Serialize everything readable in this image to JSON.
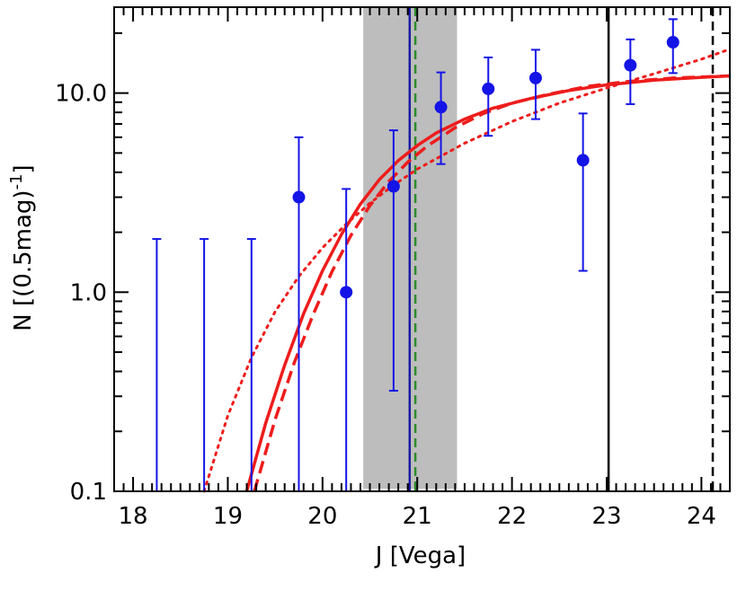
{
  "chart_data": {
    "type": "scatter",
    "xlabel": "J [Vega]",
    "ylabel": "N [(0.5mag)",
    "ylabel_sup": "-1",
    "ylabel_close": "]",
    "xlim": [
      17.8,
      24.3
    ],
    "ylim": [
      0.1,
      27
    ],
    "yscale": "log",
    "x_ticks": [
      18,
      19,
      20,
      21,
      22,
      23,
      24
    ],
    "x_tick_labels": [
      "18",
      "19",
      "20",
      "21",
      "22",
      "23",
      "24"
    ],
    "y_ticks": [
      0.1,
      1.0,
      10.0
    ],
    "y_tick_labels": [
      "0.1",
      "1.0",
      "10.0"
    ],
    "grid": false,
    "points": [
      {
        "x": 19.75,
        "y": 3.0,
        "ylo": 0.1,
        "yhi": 6.0
      },
      {
        "x": 20.25,
        "y": 1.0,
        "ylo": 0.1,
        "yhi": 3.3
      },
      {
        "x": 20.75,
        "y": 3.4,
        "ylo": 0.32,
        "yhi": 6.5
      },
      {
        "x": 21.25,
        "y": 8.5,
        "ylo": 4.4,
        "yhi": 12.7
      },
      {
        "x": 21.75,
        "y": 10.5,
        "ylo": 6.1,
        "yhi": 15.1
      },
      {
        "x": 22.25,
        "y": 11.9,
        "ylo": 7.4,
        "yhi": 16.5
      },
      {
        "x": 22.75,
        "y": 4.6,
        "ylo": 1.28,
        "yhi": 7.9
      },
      {
        "x": 23.25,
        "y": 13.8,
        "ylo": 8.8,
        "yhi": 18.6
      },
      {
        "x": 23.7,
        "y": 18.0,
        "ylo": 12.6,
        "yhi": 23.5
      }
    ],
    "upper_limits": [
      {
        "x": 18.25,
        "yhi": 1.85
      },
      {
        "x": 18.75,
        "yhi": 1.85
      },
      {
        "x": 19.25,
        "yhi": 1.85
      }
    ],
    "shaded_band": {
      "x0": 20.43,
      "x1": 21.42,
      "y0": 0.103,
      "y1": 27,
      "color": "#bdbdbd"
    },
    "vertical_lines": [
      {
        "x": 20.92,
        "color": "#1a1aa0",
        "style": "solid"
      },
      {
        "x": 20.98,
        "color": "#2e8b2e",
        "style": "dashed"
      },
      {
        "x": 23.02,
        "color": "#000000",
        "style": "solid"
      },
      {
        "x": 24.12,
        "color": "#000000",
        "style": "dashed"
      }
    ],
    "curves": [
      {
        "style": "solid",
        "color": "#ee1c1c",
        "x": [
          19.2,
          19.4,
          19.6,
          19.8,
          20.0,
          20.2,
          20.4,
          20.6,
          20.8,
          21.0,
          21.2,
          21.5,
          21.8,
          22.2,
          22.6,
          23.0,
          23.5,
          24.0,
          24.3
        ],
        "y": [
          0.1,
          0.22,
          0.43,
          0.78,
          1.28,
          1.95,
          2.77,
          3.68,
          4.58,
          5.45,
          6.3,
          7.4,
          8.4,
          9.4,
          10.3,
          11.0,
          11.6,
          12.0,
          12.2
        ]
      },
      {
        "style": "dashed",
        "color": "#ee1c1c",
        "x": [
          19.28,
          19.5,
          19.7,
          19.9,
          20.1,
          20.3,
          20.5,
          20.7,
          20.9,
          21.1,
          21.4,
          21.7,
          22.0,
          22.4,
          22.8,
          23.2,
          23.7,
          24.3
        ],
        "y": [
          0.1,
          0.23,
          0.44,
          0.77,
          1.27,
          1.93,
          2.72,
          3.6,
          4.5,
          5.4,
          6.7,
          7.9,
          8.9,
          9.9,
          10.8,
          11.4,
          11.9,
          12.2
        ]
      },
      {
        "style": "dotted",
        "color": "#ee1c1c",
        "x": [
          18.75,
          19.0,
          19.25,
          19.5,
          19.75,
          20.0,
          20.25,
          20.5,
          20.75,
          21.0,
          21.5,
          22.0,
          22.5,
          23.0,
          23.5,
          24.0,
          24.3
        ],
        "y": [
          0.1,
          0.24,
          0.47,
          0.8,
          1.2,
          1.67,
          2.2,
          2.8,
          3.45,
          4.15,
          5.6,
          7.2,
          8.9,
          10.6,
          12.5,
          14.8,
          16.6
        ]
      }
    ]
  }
}
